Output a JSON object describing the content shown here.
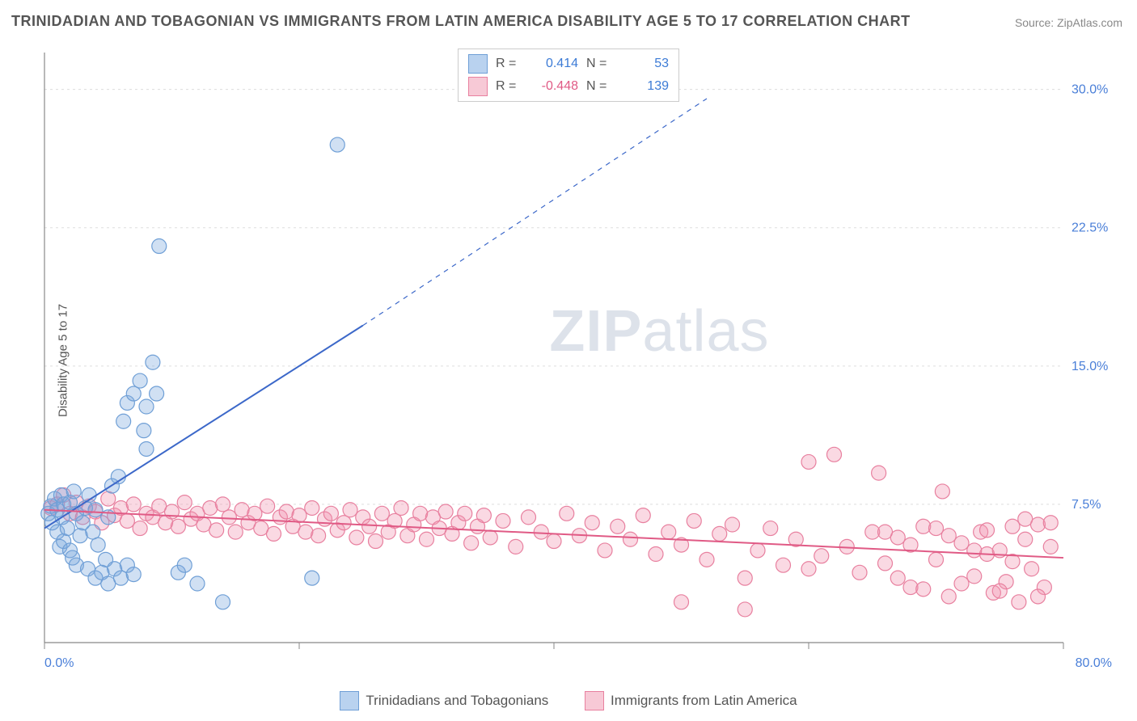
{
  "title": "TRINIDADIAN AND TOBAGONIAN VS IMMIGRANTS FROM LATIN AMERICA DISABILITY AGE 5 TO 17 CORRELATION CHART",
  "source_prefix": "Source: ",
  "source_name": "ZipAtlas.com",
  "ylabel": "Disability Age 5 to 17",
  "watermark_zip": "ZIP",
  "watermark_atlas": "atlas",
  "chart": {
    "type": "scatter",
    "background_color": "#ffffff",
    "grid_color": "#dddddd",
    "axis_color": "#888888",
    "xlim": [
      0,
      80
    ],
    "ylim": [
      0,
      32
    ],
    "x_tick_positions": [
      0,
      20,
      40,
      60,
      80
    ],
    "x_tick_labels": [
      "0.0%",
      "",
      "",
      "",
      "80.0%"
    ],
    "x_tick_color": "#4a7fd8",
    "y_tick_positions": [
      7.5,
      15.0,
      22.5,
      30.0
    ],
    "y_tick_labels": [
      "7.5%",
      "15.0%",
      "22.5%",
      "30.0%"
    ],
    "y_tick_color": "#4a7fd8",
    "y_tick_side": "right",
    "tick_fontsize": 16,
    "series": [
      {
        "name": "Trinidadians and Tobagonians",
        "color_fill": "rgba(120,165,220,0.35)",
        "color_stroke": "#6f9fd6",
        "legend_swatch_fill": "#b9d2ef",
        "legend_swatch_stroke": "#6f9fd6",
        "marker_radius": 9,
        "R": "0.414",
        "N": "53",
        "R_color": "#3c7bd6",
        "N_color": "#3c7bd6",
        "trend": {
          "x1": 0,
          "y1": 6.2,
          "x2": 25,
          "y2": 17.2,
          "x2_ext": 52,
          "y2_ext": 29.5,
          "stroke": "#3c68c9",
          "width": 2
        },
        "points": [
          [
            0.3,
            7.0
          ],
          [
            0.5,
            7.4
          ],
          [
            0.6,
            6.5
          ],
          [
            0.8,
            7.8
          ],
          [
            1.0,
            6.0
          ],
          [
            1.0,
            7.2
          ],
          [
            1.2,
            5.2
          ],
          [
            1.3,
            8.0
          ],
          [
            1.4,
            6.8
          ],
          [
            1.5,
            5.5
          ],
          [
            1.5,
            7.5
          ],
          [
            1.8,
            6.2
          ],
          [
            2.0,
            7.6
          ],
          [
            2.0,
            5.0
          ],
          [
            2.2,
            4.6
          ],
          [
            2.3,
            8.2
          ],
          [
            2.5,
            7.0
          ],
          [
            2.5,
            4.2
          ],
          [
            2.8,
            5.8
          ],
          [
            3.0,
            6.5
          ],
          [
            3.2,
            7.3
          ],
          [
            3.4,
            4.0
          ],
          [
            3.5,
            8.0
          ],
          [
            3.8,
            6.0
          ],
          [
            4.0,
            3.5
          ],
          [
            4.0,
            7.2
          ],
          [
            4.2,
            5.3
          ],
          [
            4.5,
            3.8
          ],
          [
            4.8,
            4.5
          ],
          [
            5.0,
            6.8
          ],
          [
            5.0,
            3.2
          ],
          [
            5.3,
            8.5
          ],
          [
            5.5,
            4.0
          ],
          [
            5.8,
            9.0
          ],
          [
            6.0,
            3.5
          ],
          [
            6.2,
            12.0
          ],
          [
            6.5,
            13.0
          ],
          [
            6.5,
            4.2
          ],
          [
            7.0,
            13.5
          ],
          [
            7.0,
            3.7
          ],
          [
            7.5,
            14.2
          ],
          [
            7.8,
            11.5
          ],
          [
            8.0,
            12.8
          ],
          [
            8.0,
            10.5
          ],
          [
            8.5,
            15.2
          ],
          [
            8.8,
            13.5
          ],
          [
            9.0,
            21.5
          ],
          [
            10.5,
            3.8
          ],
          [
            12.0,
            3.2
          ],
          [
            14.0,
            2.2
          ],
          [
            21.0,
            3.5
          ],
          [
            23.0,
            27.0
          ],
          [
            11.0,
            4.2
          ]
        ]
      },
      {
        "name": "Immigrants from Latin America",
        "color_fill": "rgba(240,145,175,0.35)",
        "color_stroke": "#e8809f",
        "legend_swatch_fill": "#f7c9d6",
        "legend_swatch_stroke": "#e8809f",
        "marker_radius": 9,
        "R": "-0.448",
        "N": "139",
        "R_color": "#e05a85",
        "N_color": "#3c7bd6",
        "trend": {
          "x1": 0,
          "y1": 7.2,
          "x2": 80,
          "y2": 4.6,
          "stroke": "#e05a85",
          "width": 2
        },
        "points": [
          [
            0.5,
            7.3
          ],
          [
            1.0,
            7.5
          ],
          [
            1.5,
            8.0
          ],
          [
            2.0,
            7.0
          ],
          [
            2.5,
            7.6
          ],
          [
            3.0,
            6.8
          ],
          [
            3.5,
            7.4
          ],
          [
            4.0,
            7.1
          ],
          [
            4.5,
            6.5
          ],
          [
            5.0,
            7.8
          ],
          [
            5.5,
            6.9
          ],
          [
            6.0,
            7.3
          ],
          [
            6.5,
            6.6
          ],
          [
            7.0,
            7.5
          ],
          [
            7.5,
            6.2
          ],
          [
            8.0,
            7.0
          ],
          [
            8.5,
            6.8
          ],
          [
            9.0,
            7.4
          ],
          [
            9.5,
            6.5
          ],
          [
            10.0,
            7.1
          ],
          [
            10.5,
            6.3
          ],
          [
            11.0,
            7.6
          ],
          [
            11.5,
            6.7
          ],
          [
            12.0,
            7.0
          ],
          [
            12.5,
            6.4
          ],
          [
            13.0,
            7.3
          ],
          [
            13.5,
            6.1
          ],
          [
            14.0,
            7.5
          ],
          [
            14.5,
            6.8
          ],
          [
            15.0,
            6.0
          ],
          [
            15.5,
            7.2
          ],
          [
            16.0,
            6.5
          ],
          [
            16.5,
            7.0
          ],
          [
            17.0,
            6.2
          ],
          [
            17.5,
            7.4
          ],
          [
            18.0,
            5.9
          ],
          [
            18.5,
            6.8
          ],
          [
            19.0,
            7.1
          ],
          [
            19.5,
            6.3
          ],
          [
            20.0,
            6.9
          ],
          [
            20.5,
            6.0
          ],
          [
            21.0,
            7.3
          ],
          [
            21.5,
            5.8
          ],
          [
            22.0,
            6.7
          ],
          [
            22.5,
            7.0
          ],
          [
            23.0,
            6.1
          ],
          [
            23.5,
            6.5
          ],
          [
            24.0,
            7.2
          ],
          [
            24.5,
            5.7
          ],
          [
            25.0,
            6.8
          ],
          [
            25.5,
            6.3
          ],
          [
            26.0,
            5.5
          ],
          [
            26.5,
            7.0
          ],
          [
            27.0,
            6.0
          ],
          [
            27.5,
            6.6
          ],
          [
            28.0,
            7.3
          ],
          [
            28.5,
            5.8
          ],
          [
            29.0,
            6.4
          ],
          [
            29.5,
            7.0
          ],
          [
            30.0,
            5.6
          ],
          [
            30.5,
            6.8
          ],
          [
            31.0,
            6.2
          ],
          [
            31.5,
            7.1
          ],
          [
            32.0,
            5.9
          ],
          [
            32.5,
            6.5
          ],
          [
            33.0,
            7.0
          ],
          [
            33.5,
            5.4
          ],
          [
            34.0,
            6.3
          ],
          [
            34.5,
            6.9
          ],
          [
            35.0,
            5.7
          ],
          [
            36.0,
            6.6
          ],
          [
            37.0,
            5.2
          ],
          [
            38.0,
            6.8
          ],
          [
            39.0,
            6.0
          ],
          [
            40.0,
            5.5
          ],
          [
            41.0,
            7.0
          ],
          [
            42.0,
            5.8
          ],
          [
            43.0,
            6.5
          ],
          [
            44.0,
            5.0
          ],
          [
            45.0,
            6.3
          ],
          [
            46.0,
            5.6
          ],
          [
            47.0,
            6.9
          ],
          [
            48.0,
            4.8
          ],
          [
            49.0,
            6.0
          ],
          [
            50.0,
            5.3
          ],
          [
            51.0,
            6.6
          ],
          [
            52.0,
            4.5
          ],
          [
            53.0,
            5.9
          ],
          [
            54.0,
            6.4
          ],
          [
            55.0,
            3.5
          ],
          [
            56.0,
            5.0
          ],
          [
            57.0,
            6.2
          ],
          [
            58.0,
            4.2
          ],
          [
            59.0,
            5.6
          ],
          [
            60.0,
            9.8
          ],
          [
            61.0,
            4.7
          ],
          [
            62.0,
            10.2
          ],
          [
            63.0,
            5.2
          ],
          [
            64.0,
            3.8
          ],
          [
            65.0,
            6.0
          ],
          [
            65.5,
            9.2
          ],
          [
            66.0,
            4.3
          ],
          [
            67.0,
            5.7
          ],
          [
            68.0,
            3.0
          ],
          [
            69.0,
            6.3
          ],
          [
            70.0,
            4.5
          ],
          [
            70.5,
            8.2
          ],
          [
            71.0,
            2.5
          ],
          [
            72.0,
            5.4
          ],
          [
            73.0,
            3.6
          ],
          [
            73.5,
            6.0
          ],
          [
            74.0,
            4.8
          ],
          [
            74.5,
            2.7
          ],
          [
            75.0,
            5.0
          ],
          [
            75.5,
            3.3
          ],
          [
            76.0,
            6.3
          ],
          [
            76.5,
            2.2
          ],
          [
            77.0,
            5.6
          ],
          [
            77.5,
            4.0
          ],
          [
            78.0,
            6.4
          ],
          [
            78.5,
            3.0
          ],
          [
            79.0,
            5.2
          ],
          [
            79.0,
            6.5
          ],
          [
            78.0,
            2.5
          ],
          [
            77.0,
            6.7
          ],
          [
            76.0,
            4.4
          ],
          [
            75.0,
            2.8
          ],
          [
            74.0,
            6.1
          ],
          [
            73.0,
            5.0
          ],
          [
            72.0,
            3.2
          ],
          [
            71.0,
            5.8
          ],
          [
            70.0,
            6.2
          ],
          [
            69.0,
            2.9
          ],
          [
            68.0,
            5.3
          ],
          [
            67.0,
            3.5
          ],
          [
            66.0,
            6.0
          ],
          [
            55.0,
            1.8
          ],
          [
            60.0,
            4.0
          ],
          [
            50.0,
            2.2
          ]
        ]
      }
    ]
  },
  "legend_top": {
    "R_label": "R =",
    "N_label": "N ="
  }
}
